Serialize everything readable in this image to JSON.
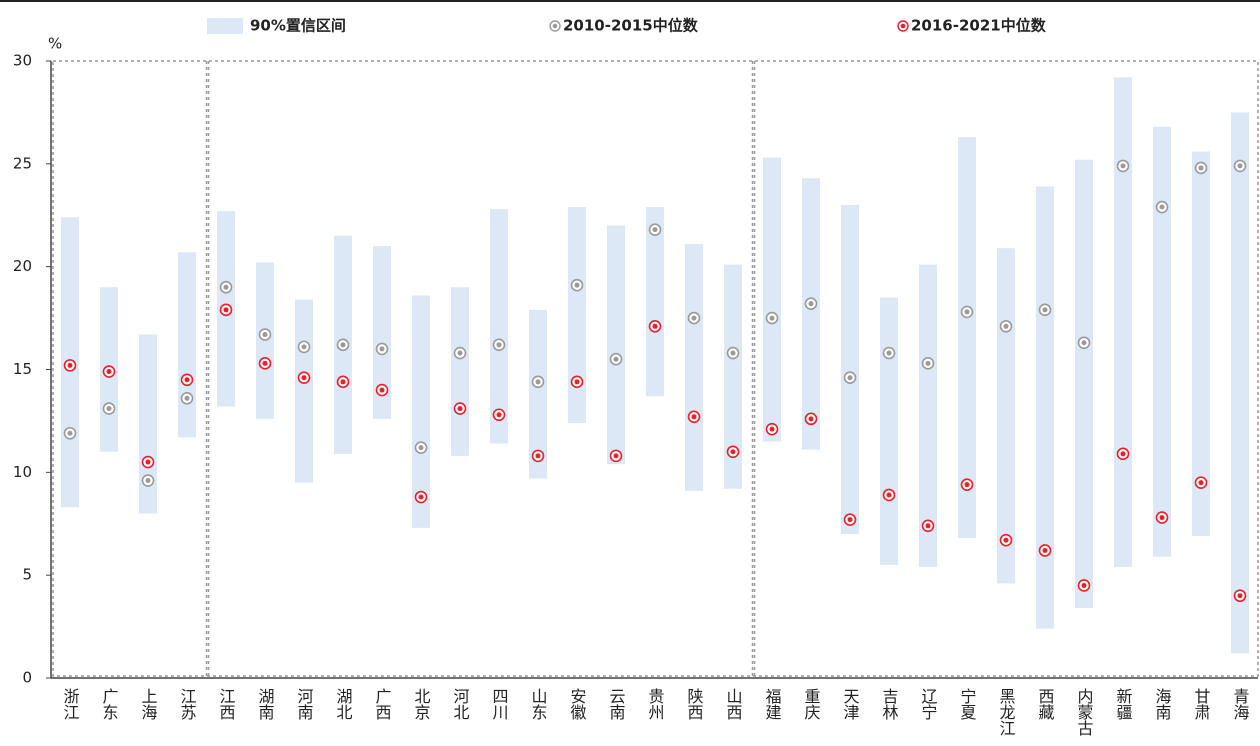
{
  "chart_data": {
    "type": "range-dot",
    "y_unit": "%",
    "categories": [
      "浙江",
      "广东",
      "上海",
      "江苏",
      "江西",
      "湖南",
      "河南",
      "湖北",
      "广西",
      "北京",
      "河北",
      "四川",
      "山东",
      "安徽",
      "云南",
      "贵州",
      "陕西",
      "山西",
      "福建",
      "重庆",
      "天津",
      "吉林",
      "辽宁",
      "宁夏",
      "黑龙江",
      "西藏",
      "内蒙古",
      "新疆",
      "海南",
      "甘肃",
      "青海"
    ],
    "series": [
      {
        "name": "90%置信区间",
        "color": "#dce8f5",
        "low": [
          8.3,
          11.0,
          8.0,
          11.7,
          13.2,
          12.6,
          9.5,
          10.9,
          12.6,
          7.3,
          10.8,
          11.4,
          9.7,
          12.4,
          10.4,
          13.7,
          9.1,
          9.2,
          11.5,
          11.1,
          7.0,
          5.5,
          5.4,
          6.8,
          4.6,
          2.4,
          3.4,
          5.4,
          5.9,
          6.9,
          1.2
        ],
        "high": [
          22.4,
          19.0,
          16.7,
          20.7,
          22.7,
          20.2,
          18.4,
          21.5,
          21.0,
          18.6,
          19.0,
          22.8,
          17.9,
          22.9,
          22.0,
          22.9,
          21.1,
          20.1,
          25.3,
          24.3,
          23.0,
          18.5,
          20.1,
          26.3,
          20.9,
          23.9,
          25.2,
          29.2,
          26.8,
          25.6,
          27.5
        ]
      },
      {
        "name": "2010-2015中位数",
        "color": "#9a9a9a",
        "values": [
          11.9,
          13.1,
          9.6,
          13.6,
          19.0,
          16.7,
          16.1,
          16.2,
          16.0,
          11.2,
          15.8,
          16.2,
          14.4,
          19.1,
          15.5,
          21.8,
          17.5,
          15.8,
          17.5,
          18.2,
          14.6,
          15.8,
          15.3,
          17.8,
          17.1,
          17.9,
          16.3,
          24.9,
          22.9,
          24.8,
          24.9
        ]
      },
      {
        "name": "2016-2021中位数",
        "color": "#e8202a",
        "values": [
          15.2,
          14.9,
          10.5,
          14.5,
          17.9,
          15.3,
          14.6,
          14.4,
          14.0,
          8.8,
          13.1,
          12.8,
          10.8,
          14.4,
          10.8,
          17.1,
          12.7,
          11.0,
          12.1,
          12.6,
          7.7,
          8.9,
          7.4,
          9.4,
          6.7,
          6.2,
          4.5,
          10.9,
          7.8,
          9.5,
          4.0
        ]
      }
    ],
    "ylim": [
      0,
      30
    ],
    "yticks": [
      0,
      5,
      10,
      15,
      20,
      25,
      30
    ]
  }
}
